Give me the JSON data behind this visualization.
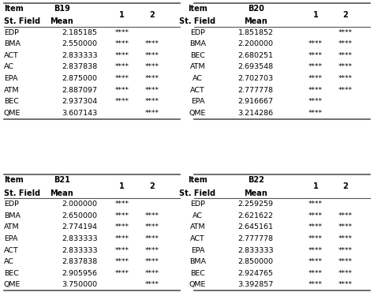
{
  "tables": [
    {
      "label": "B19",
      "headers": [
        "Item\nSt. Field",
        "B19\nMean",
        "1",
        "2"
      ],
      "rows": [
        [
          "EDP",
          "2.185185",
          "****",
          ""
        ],
        [
          "BMA",
          "2.550000",
          "****",
          "****"
        ],
        [
          "ACT",
          "2.833333",
          "****",
          "****"
        ],
        [
          "AC",
          "2.837838",
          "****",
          "****"
        ],
        [
          "EPA",
          "2.875000",
          "****",
          "****"
        ],
        [
          "ATM",
          "2.887097",
          "****",
          "****"
        ],
        [
          "BEC",
          "2.937304",
          "****",
          "****"
        ],
        [
          "QME",
          "3.607143",
          "",
          "****"
        ]
      ],
      "header_align": [
        "left",
        "center",
        "center",
        "center"
      ],
      "col_align": [
        "left",
        "left",
        "center",
        "center"
      ]
    },
    {
      "label": "B20",
      "headers": [
        "Item\nSt. Field",
        "B20\nMean",
        "1",
        "2"
      ],
      "rows": [
        [
          "EDP",
          "1.851852",
          "",
          "****"
        ],
        [
          "BMA",
          "2.200000",
          "****",
          "****"
        ],
        [
          "BEC",
          "2.680251",
          "****",
          "****"
        ],
        [
          "ATM",
          "2.693548",
          "****",
          "****"
        ],
        [
          "AC",
          "2.702703",
          "****",
          "****"
        ],
        [
          "ACT",
          "2.777778",
          "****",
          "****"
        ],
        [
          "EPA",
          "2.916667",
          "****",
          ""
        ],
        [
          "QME",
          "3.214286",
          "****",
          ""
        ]
      ],
      "header_align": [
        "center",
        "center",
        "center",
        "center"
      ],
      "col_align": [
        "center",
        "center",
        "center",
        "center"
      ]
    },
    {
      "label": "B21",
      "headers": [
        "Item\nSt. Field",
        "B21\nMean",
        "1",
        "2"
      ],
      "rows": [
        [
          "EDP",
          "2.000000",
          "****",
          ""
        ],
        [
          "BMA",
          "2.650000",
          "****",
          "****"
        ],
        [
          "ATM",
          "2.774194",
          "****",
          "****"
        ],
        [
          "EPA",
          "2.833333",
          "****",
          "****"
        ],
        [
          "ACT",
          "2.833333",
          "****",
          "****"
        ],
        [
          "AC",
          "2.837838",
          "****",
          "****"
        ],
        [
          "BEC",
          "2.905956",
          "****",
          "****"
        ],
        [
          "QME",
          "3.750000",
          "",
          "****"
        ]
      ],
      "header_align": [
        "left",
        "center",
        "center",
        "center"
      ],
      "col_align": [
        "left",
        "left",
        "center",
        "center"
      ]
    },
    {
      "label": "B22",
      "headers": [
        "Item\nSt. Field",
        "B22\nMean",
        "1",
        "2"
      ],
      "rows": [
        [
          "EDP",
          "2.259259",
          "****",
          ""
        ],
        [
          "AC",
          "2.621622",
          "****",
          "****"
        ],
        [
          "ATM",
          "2.645161",
          "****",
          "****"
        ],
        [
          "ACT",
          "2.777778",
          "****",
          "****"
        ],
        [
          "EPA",
          "2.833333",
          "****",
          "****"
        ],
        [
          "BMA",
          "2.850000",
          "****",
          "****"
        ],
        [
          "BEC",
          "2.924765",
          "****",
          "****"
        ],
        [
          "QME",
          "3.392857",
          "****",
          "****"
        ]
      ],
      "header_align": [
        "center",
        "center",
        "center",
        "center"
      ],
      "col_align": [
        "center",
        "center",
        "center",
        "center"
      ]
    }
  ],
  "header_fontsize": 7.0,
  "cell_fontsize": 6.8,
  "bg_color": "white",
  "line_color": "#555555",
  "text_color": "black"
}
